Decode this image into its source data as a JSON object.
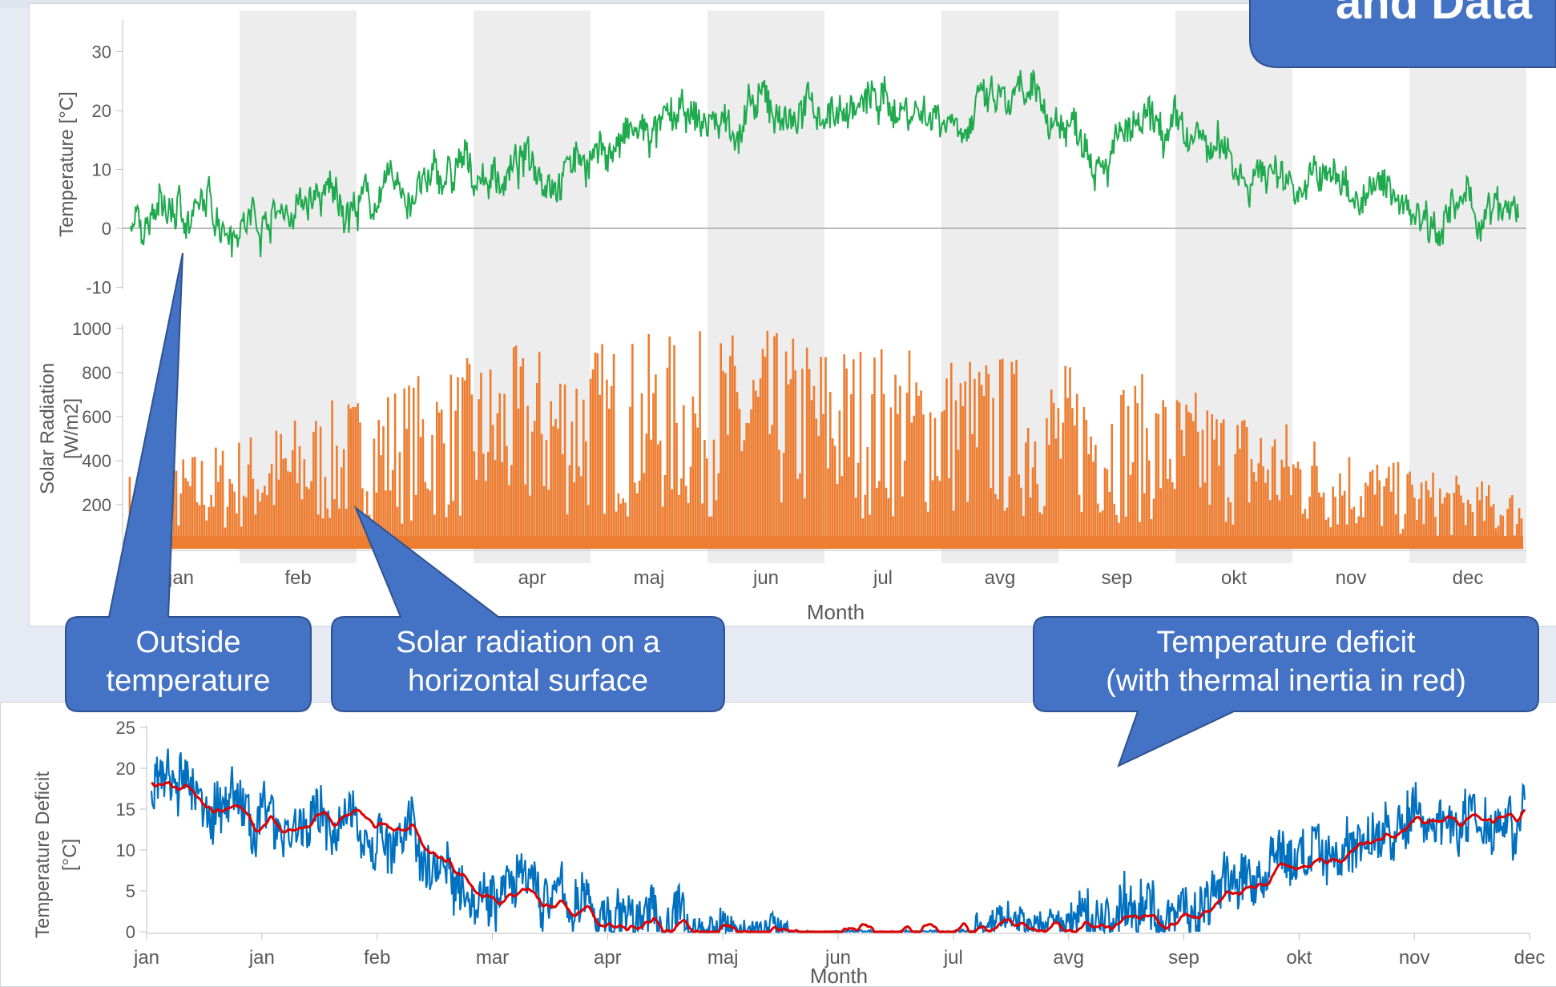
{
  "title_fragment": "and Data",
  "callouts": {
    "outside_temperature": "Outside temperature",
    "solar_radiation": "Solar radiation on a horizontal surface",
    "temperature_deficit_line1": "Temperature deficit",
    "temperature_deficit_line2": "(with thermal inertia in red)"
  },
  "colors": {
    "temperature": "#1faa4e",
    "solar": "#ed7d31",
    "deficit": "#0070c0",
    "deficit_inertia": "#e00000",
    "callout_fill": "#4472c4",
    "band": "#ededed"
  },
  "chart_data": [
    {
      "type": "line",
      "ylabel": "Temperature [°C]",
      "ylim": [
        -10,
        35
      ],
      "yticks": [
        30,
        20,
        10,
        0,
        -10
      ],
      "categories": [
        "jan",
        "feb",
        "mar",
        "apr",
        "maj",
        "jun",
        "jul",
        "avg",
        "sep",
        "okt",
        "nov",
        "dec"
      ],
      "series": [
        {
          "values": [
            2,
            3,
            5,
            10,
            15,
            19,
            21,
            20,
            15,
            10,
            5,
            1
          ]
        }
      ]
    },
    {
      "type": "bar",
      "ylabel": "Solar Radiation [W/m2]",
      "ylim": [
        0,
        1000
      ],
      "yticks": [
        1000,
        800,
        600,
        400,
        200
      ],
      "xlabel": "Month",
      "categories": [
        "jan",
        "feb",
        "mar",
        "apr",
        "maj",
        "jun",
        "jul",
        "avg",
        "sep",
        "okt",
        "nov",
        "dec"
      ],
      "series": [
        {
          "values": [
            330,
            520,
            720,
            880,
            930,
            960,
            900,
            850,
            760,
            600,
            380,
            260
          ]
        }
      ]
    },
    {
      "type": "line",
      "ylabel": "Temperature Deficit [°C]",
      "ylim": [
        0,
        25
      ],
      "yticks": [
        25,
        20,
        15,
        10,
        5,
        0
      ],
      "xlabel": "Month",
      "categories": [
        "jan",
        "jan",
        "feb",
        "mar",
        "apr",
        "maj",
        "jun",
        "jul",
        "avg",
        "sep",
        "okt",
        "nov",
        "dec"
      ],
      "series": [
        {
          "values": [
            18,
            14,
            12,
            6,
            2,
            0.5,
            0,
            0,
            1,
            3,
            9,
            13,
            16
          ]
        },
        {
          "values": [
            18,
            13,
            14,
            5,
            1,
            0,
            0,
            0,
            0,
            2,
            8,
            13,
            16
          ]
        }
      ]
    }
  ]
}
